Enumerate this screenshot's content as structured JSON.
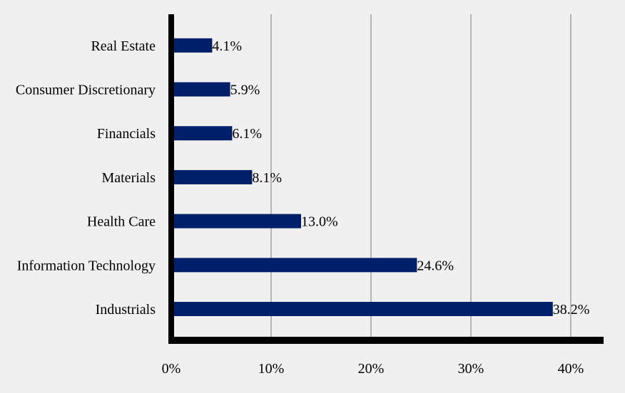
{
  "chart_data": {
    "type": "bar",
    "orientation": "horizontal",
    "categories": [
      "Industrials",
      "Information Technology",
      "Health Care",
      "Materials",
      "Financials",
      "Consumer Discretionary",
      "Real Estate"
    ],
    "values": [
      38.2,
      24.6,
      13.0,
      8.1,
      6.1,
      5.9,
      4.1
    ],
    "data_labels": [
      "38.2%",
      "24.6%",
      "13.0%",
      "8.1%",
      "6.1%",
      "5.9%",
      "4.1%"
    ],
    "title": "",
    "xlabel": "",
    "ylabel": "",
    "xlim": [
      0,
      40
    ],
    "xticks": [
      0,
      10,
      20,
      30,
      40
    ],
    "xtick_labels": [
      "0%",
      "10%",
      "20%",
      "30%",
      "40%"
    ],
    "grid": "vertical",
    "legend": "none",
    "colors": {
      "bar": "#001f6b",
      "grid": "#b5b5b5",
      "axis": "#000000",
      "background": "#f0f0f0"
    }
  }
}
